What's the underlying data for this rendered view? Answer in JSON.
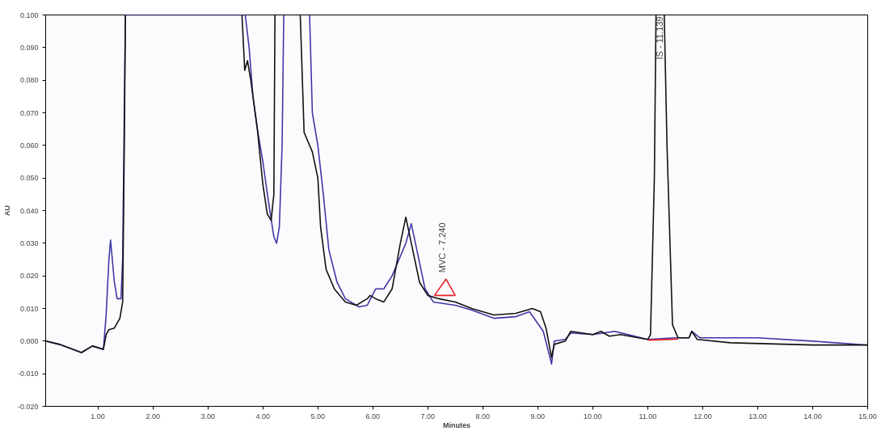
{
  "chart_data": {
    "type": "line",
    "xlabel": "Minutes",
    "ylabel": "AU",
    "xlim": [
      0.05,
      15.0
    ],
    "ylim": [
      -0.02,
      0.1
    ],
    "xticks": [
      {
        "value": 1,
        "label": "1.00"
      },
      {
        "value": 2,
        "label": "2.00"
      },
      {
        "value": 3,
        "label": "3.00"
      },
      {
        "value": 4,
        "label": "4.00"
      },
      {
        "value": 5,
        "label": "5.00"
      },
      {
        "value": 6,
        "label": "6.00"
      },
      {
        "value": 7,
        "label": "7.00"
      },
      {
        "value": 8,
        "label": "8.00"
      },
      {
        "value": 9,
        "label": "9.00"
      },
      {
        "value": 10,
        "label": "10.00"
      },
      {
        "value": 11,
        "label": "11.00"
      },
      {
        "value": 12,
        "label": "12.00"
      },
      {
        "value": 13,
        "label": "13.00"
      },
      {
        "value": 14,
        "label": "14.00"
      },
      {
        "value": 15,
        "label": "15.00"
      }
    ],
    "yticks": [
      {
        "value": -0.02,
        "label": "-0.020"
      },
      {
        "value": -0.01,
        "label": "-0.010"
      },
      {
        "value": 0,
        "label": "0.000"
      },
      {
        "value": 0.01,
        "label": "0.010"
      },
      {
        "value": 0.02,
        "label": "0.020"
      },
      {
        "value": 0.03,
        "label": "0.030"
      },
      {
        "value": 0.04,
        "label": "0.040"
      },
      {
        "value": 0.05,
        "label": "0.050"
      },
      {
        "value": 0.06,
        "label": "0.060"
      },
      {
        "value": 0.07,
        "label": "0.070"
      },
      {
        "value": 0.08,
        "label": "0.080"
      },
      {
        "value": 0.09,
        "label": "0.090"
      },
      {
        "value": 0.1,
        "label": "0.100"
      }
    ],
    "grid": false,
    "marker": "none",
    "line_style": "solid",
    "series": [
      {
        "color": "#3f37a6",
        "x": [
          0.05,
          0.3,
          0.7,
          0.9,
          1.1,
          1.15,
          1.2,
          1.23,
          1.3,
          1.35,
          1.42,
          1.45,
          1.5,
          3.68,
          3.75,
          3.82,
          3.9,
          4.0,
          4.1,
          4.2,
          4.25,
          4.3,
          4.35,
          4.38,
          4.6,
          4.85,
          4.9,
          5.0,
          5.1,
          5.2,
          5.35,
          5.5,
          5.75,
          5.9,
          6.05,
          6.2,
          6.35,
          6.5,
          6.6,
          6.7,
          6.8,
          6.95,
          7.1,
          7.3,
          7.5,
          7.8,
          8.2,
          8.6,
          8.85,
          9.1,
          9.25,
          9.3,
          9.5,
          9.6,
          10.0,
          10.4,
          11.0,
          11.5,
          11.75,
          11.8,
          11.95,
          13.0,
          14.0,
          15.0
        ],
        "values": [
          0,
          -0.001,
          -0.0035,
          -0.0015,
          -0.0025,
          0.008,
          0.025,
          0.031,
          0.018,
          0.013,
          0.013,
          0.025,
          0.1,
          0.1,
          0.09,
          0.075,
          0.065,
          0.055,
          0.043,
          0.032,
          0.03,
          0.035,
          0.06,
          0.1,
          null,
          0.1,
          0.07,
          0.06,
          0.045,
          0.028,
          0.018,
          0.013,
          0.0105,
          0.011,
          0.016,
          0.016,
          0.02,
          0.026,
          0.03,
          0.036,
          0.028,
          0.016,
          0.012,
          0.0115,
          0.011,
          0.0095,
          0.007,
          0.0075,
          0.009,
          0.003,
          -0.007,
          0,
          0.0005,
          0.0025,
          0.002,
          0.003,
          0.0005,
          0.001,
          0.001,
          0.003,
          0.001,
          0.001,
          0,
          -0.0012
        ]
      },
      {
        "color": "#111111",
        "x": [
          0.05,
          0.3,
          0.7,
          0.9,
          1.1,
          1.15,
          1.2,
          1.3,
          1.4,
          1.45,
          1.48,
          1.5,
          2.5,
          3.62,
          3.67,
          3.72,
          3.78,
          3.9,
          4.0,
          4.08,
          4.15,
          4.2,
          4.22,
          4.4,
          4.68,
          4.75,
          4.9,
          5.0,
          5.05,
          5.15,
          5.3,
          5.5,
          5.7,
          5.9,
          5.95,
          6.05,
          6.2,
          6.35,
          6.5,
          6.6,
          6.7,
          6.85,
          7.0,
          7.2,
          7.5,
          7.8,
          8.2,
          8.6,
          8.9,
          9.05,
          9.15,
          9.25,
          9.3,
          9.5,
          9.6,
          10.0,
          10.15,
          10.3,
          10.5,
          11.0,
          11.05,
          11.12,
          11.15,
          11.22,
          11.3,
          11.35,
          11.45,
          11.55,
          11.75,
          11.8,
          11.9,
          12.5,
          14.0,
          15.0
        ],
        "values": [
          0,
          -0.001,
          -0.0035,
          -0.0015,
          -0.0025,
          0.002,
          0.0035,
          0.004,
          0.007,
          0.012,
          0.06,
          0.1,
          null,
          0.1,
          0.083,
          0.086,
          0.08,
          0.065,
          0.048,
          0.039,
          0.037,
          0.045,
          0.1,
          null,
          0.1,
          0.064,
          0.058,
          0.05,
          0.035,
          0.022,
          0.016,
          0.012,
          0.011,
          0.013,
          0.014,
          0.013,
          0.012,
          0.016,
          0.03,
          0.038,
          0.03,
          0.018,
          0.014,
          0.013,
          0.012,
          0.01,
          0.008,
          0.0085,
          0.01,
          0.009,
          0.004,
          -0.005,
          -0.001,
          0,
          0.003,
          0.002,
          0.003,
          0.0015,
          0.002,
          0.0005,
          0.002,
          0.05,
          0.1,
          null,
          0.1,
          0.06,
          0.005,
          0.001,
          0.001,
          0.003,
          0.0005,
          -0.0005,
          -0.0012,
          -0.0012
        ]
      },
      {
        "color": "#e8202a",
        "x": [
          7.12,
          7.33,
          7.5
        ],
        "values": [
          0.014,
          0.019,
          0.014
        ]
      },
      {
        "color": "#e8202a",
        "x": [
          7.12,
          7.5
        ],
        "values": [
          0.014,
          0.014
        ]
      },
      {
        "color": "#e8202a",
        "x": [
          11.0,
          11.55
        ],
        "values": [
          0.0003,
          0.0006
        ]
      }
    ],
    "annotations": [
      {
        "text": "MVC - 7.240",
        "x": 7.33,
        "y": 0.019
      },
      {
        "text": "IS - 11.139",
        "x": 11.22,
        "y": 0.1
      }
    ]
  }
}
